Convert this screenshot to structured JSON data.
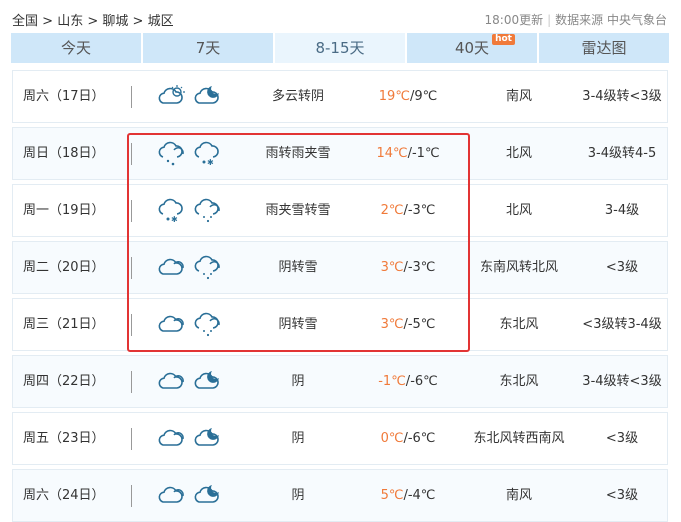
{
  "breadcrumb": [
    "全国",
    "山东",
    "聊城",
    "城区"
  ],
  "update_time": "18:00更新",
  "source": "数据来源 中央气象台",
  "tabs": [
    {
      "label": "今天"
    },
    {
      "label": "7天"
    },
    {
      "label": "8-15天",
      "active": true
    },
    {
      "label": "40天",
      "badge": "hot"
    },
    {
      "label": "雷达图"
    }
  ],
  "days": [
    {
      "day": "周六（17日）",
      "icons": [
        "partly-cloudy-day-icon",
        "partly-cloudy-night-icon"
      ],
      "weather": "多云转阴",
      "high": "19℃",
      "low": "9℃",
      "wind": "南风",
      "level": "3-4级转<3级"
    },
    {
      "day": "周日（18日）",
      "icons": [
        "rain-icon",
        "sleet-icon"
      ],
      "weather": "雨转雨夹雪",
      "high": "14℃",
      "low": "-1℃",
      "wind": "北风",
      "level": "3-4级转4-5"
    },
    {
      "day": "周一（19日）",
      "icons": [
        "sleet-icon",
        "snow-icon"
      ],
      "weather": "雨夹雪转雪",
      "high": "2℃",
      "low": "-3℃",
      "wind": "北风",
      "level": "3-4级"
    },
    {
      "day": "周二（20日）",
      "icons": [
        "overcast-icon",
        "snow-icon"
      ],
      "weather": "阴转雪",
      "high": "3℃",
      "low": "-3℃",
      "wind": "东南风转北风",
      "level": "<3级"
    },
    {
      "day": "周三（21日）",
      "icons": [
        "overcast-icon",
        "snow-icon"
      ],
      "weather": "阴转雪",
      "high": "3℃",
      "low": "-5℃",
      "wind": "东北风",
      "level": "<3级转3-4级"
    },
    {
      "day": "周四（22日）",
      "icons": [
        "overcast-icon",
        "partly-cloudy-night-icon"
      ],
      "weather": "阴",
      "high": "-1℃",
      "low": "-6℃",
      "wind": "东北风",
      "level": "3-4级转<3级"
    },
    {
      "day": "周五（23日）",
      "icons": [
        "overcast-icon",
        "partly-cloudy-night-icon"
      ],
      "weather": "阴",
      "high": "0℃",
      "low": "-6℃",
      "wind": "东北风转西南风",
      "level": "<3级"
    },
    {
      "day": "周六（24日）",
      "icons": [
        "overcast-icon",
        "partly-cloudy-night-icon"
      ],
      "weather": "阴",
      "high": "5℃",
      "low": "-4℃",
      "wind": "南风",
      "level": "<3级"
    }
  ],
  "colors": {
    "accent": "#f07a3a",
    "tab_bg": "#cfe7f9",
    "highlight_box": "#e23434",
    "icon": "#2a6f97"
  }
}
